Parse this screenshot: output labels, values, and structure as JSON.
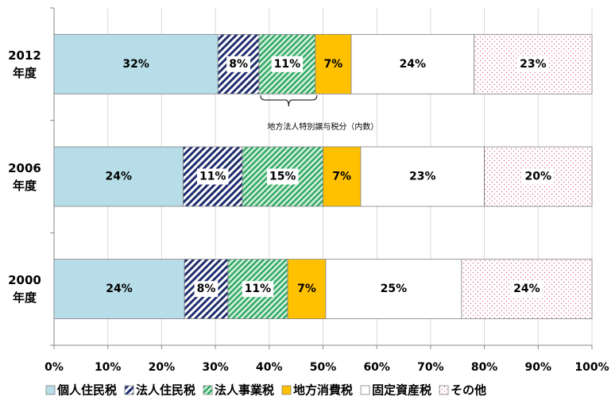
{
  "chart_data": {
    "type": "bar",
    "orientation": "horizontal",
    "stack": "percent",
    "categories": [
      "2012\n年度",
      "2006\n年度",
      "2000\n年度"
    ],
    "series": [
      {
        "name": "個人住民税",
        "color": "#b7dde8",
        "values": [
          32,
          24,
          24
        ],
        "value_labels": [
          "32%",
          "24%",
          "24%"
        ]
      },
      {
        "name": "法人住民税",
        "color": "#1f2d6e",
        "pattern": "stripes",
        "values": [
          8,
          11,
          8
        ],
        "value_labels": [
          "8%",
          "11%",
          "8%"
        ]
      },
      {
        "name": "法人事業税",
        "color": "#1e9e55",
        "pattern": "stripes",
        "values": [
          11,
          15,
          11
        ],
        "value_labels": [
          "11%",
          "15%",
          "11%"
        ]
      },
      {
        "name": "地方消費税",
        "color": "#ffc000",
        "values": [
          7,
          7,
          7
        ],
        "value_labels": [
          "7%",
          "7%",
          "7%"
        ]
      },
      {
        "name": "固定資産税",
        "color": "#ffffff",
        "values": [
          24,
          23,
          25
        ],
        "value_labels": [
          "24%",
          "23%",
          "25%"
        ]
      },
      {
        "name": "その他",
        "color": "#e06b8a",
        "pattern": "dots",
        "values": [
          23,
          20,
          24
        ],
        "value_labels": [
          "23%",
          "20%",
          "24%"
        ]
      }
    ],
    "xlim": [
      0,
      100
    ],
    "xticks": [
      {
        "value": 0,
        "label": "0%"
      },
      {
        "value": 10,
        "label": "10%"
      },
      {
        "value": 20,
        "label": "20%"
      },
      {
        "value": 30,
        "label": "30%"
      },
      {
        "value": 40,
        "label": "40%"
      },
      {
        "value": 50,
        "label": "50%"
      },
      {
        "value": 60,
        "label": "60%"
      },
      {
        "value": 70,
        "label": "70%"
      },
      {
        "value": 80,
        "label": "80%"
      },
      {
        "value": 90,
        "label": "90%"
      },
      {
        "value": 100,
        "label": "100%"
      }
    ],
    "grid": true,
    "annotation": "地方法人特別譲与税分（内数）",
    "legend": "bottom"
  }
}
